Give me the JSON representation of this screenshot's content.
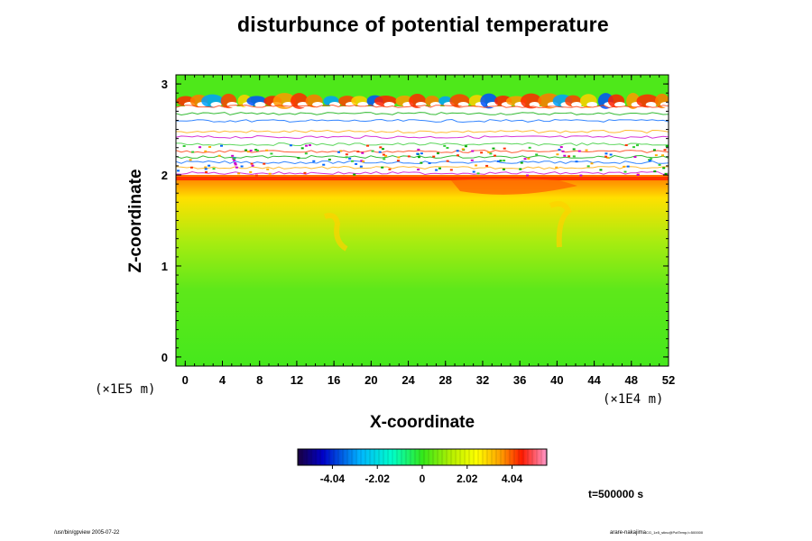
{
  "chart_data": {
    "type": "heatmap",
    "title": "disturbunce of potential temperature",
    "xlabel": "X-coordinate",
    "ylabel": "Z-coordinate",
    "x_unit": "(×1E4 m)",
    "y_unit": "(×1E5 m)",
    "xlim": [
      -1,
      52
    ],
    "ylim": [
      -0.1,
      3.1
    ],
    "x_ticks": [
      "0",
      "4",
      "8",
      "12",
      "16",
      "20",
      "24",
      "28",
      "32",
      "36",
      "40",
      "44",
      "48",
      "52"
    ],
    "y_ticks": [
      "0",
      "1",
      "2",
      "3"
    ],
    "colorbar": {
      "ticks": [
        "-4.04",
        "-2.02",
        "0",
        "2.02",
        "4.04"
      ],
      "range": [
        -5.6,
        5.6
      ]
    },
    "field_description_values": {
      "lower_layer_0_to_1.4": 0.4,
      "middle_layer_1.4_to_1.9": 1.8,
      "inversion_near_2": 4.5,
      "upper_band_2_to_2.8": "undefined (white)",
      "top_2.8_to_3.1": "oscillating -4 to 4.5 around 0"
    },
    "grid": false
  },
  "annotation": {
    "time": "t=500000 s"
  },
  "footer": {
    "left": "/usr/bin/gpview 2005-07-22",
    "right_main": "arare-nakajima",
    "right_sub": "CG_1e5_stinc@PotTemp,t=500000"
  },
  "colors": {
    "background": "#ffffff",
    "axis": "#000000",
    "missing": "#ffffff"
  }
}
